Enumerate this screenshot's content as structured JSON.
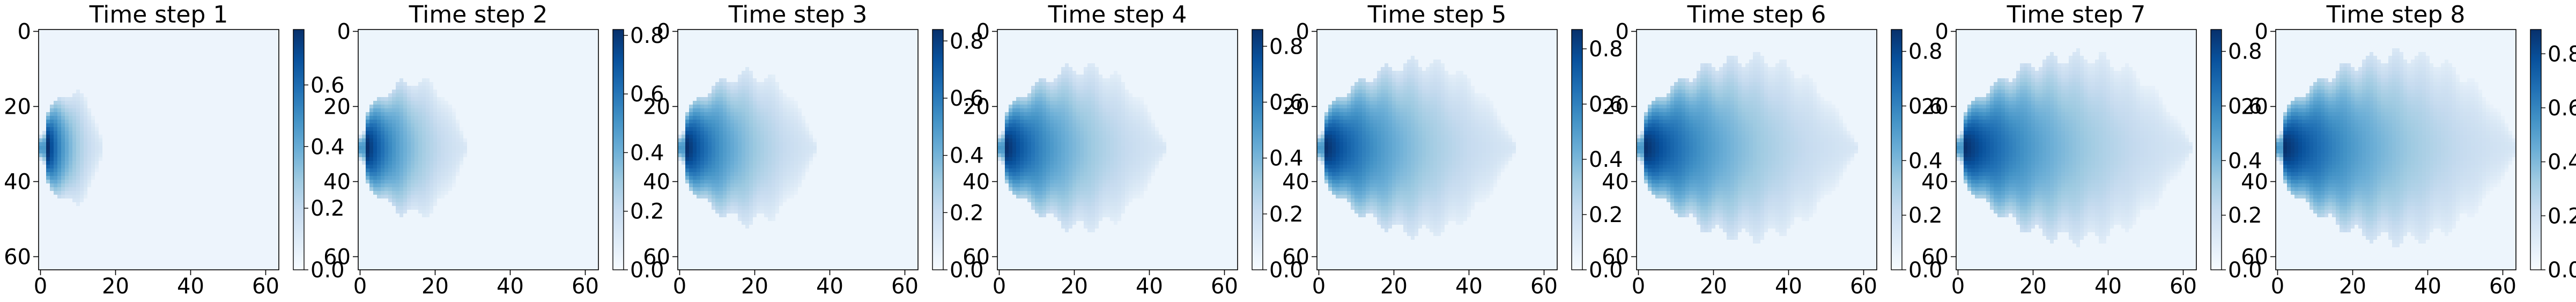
{
  "colormap": [
    "#f7fbff",
    "#deebf7",
    "#c6dbef",
    "#9ecae1",
    "#6baed6",
    "#4292c6",
    "#2171b5",
    "#08519c",
    "#08306b"
  ],
  "chart_data": {
    "type": "heatmap",
    "grid_size": 64,
    "xlim": [
      0,
      63
    ],
    "ylim": [
      63,
      0
    ],
    "x_ticks": [
      "0",
      "20",
      "40",
      "60"
    ],
    "y_ticks": [
      "0",
      "20",
      "40",
      "60"
    ],
    "source_row": 31,
    "source_col": 2,
    "panels": [
      {
        "title": "Time step 1",
        "extent": 14,
        "peak": 0.78,
        "vmax": 0.78,
        "colorbar_ticks": [
          "0.0",
          "0.2",
          "0.4",
          "0.6"
        ]
      },
      {
        "title": "Time step 2",
        "extent": 26,
        "peak": 0.82,
        "vmax": 0.82,
        "colorbar_ticks": [
          "0.0",
          "0.2",
          "0.4",
          "0.6",
          "0.8"
        ]
      },
      {
        "title": "Time step 3",
        "extent": 34,
        "peak": 0.84,
        "vmax": 0.84,
        "colorbar_ticks": [
          "0.0",
          "0.2",
          "0.4",
          "0.6",
          "0.8"
        ]
      },
      {
        "title": "Time step 4",
        "extent": 42,
        "peak": 0.86,
        "vmax": 0.86,
        "colorbar_ticks": [
          "0.0",
          "0.2",
          "0.4",
          "0.6",
          "0.8"
        ]
      },
      {
        "title": "Time step 5",
        "extent": 50,
        "peak": 0.87,
        "vmax": 0.87,
        "colorbar_ticks": [
          "0.0",
          "0.2",
          "0.4",
          "0.6",
          "0.8"
        ]
      },
      {
        "title": "Time step 6",
        "extent": 56,
        "peak": 0.88,
        "vmax": 0.88,
        "colorbar_ticks": [
          "0.0",
          "0.2",
          "0.4",
          "0.6",
          "0.8"
        ]
      },
      {
        "title": "Time step 7",
        "extent": 60,
        "peak": 0.88,
        "vmax": 0.88,
        "colorbar_ticks": [
          "0.0",
          "0.2",
          "0.4",
          "0.6",
          "0.8"
        ]
      },
      {
        "title": "Time step 8",
        "extent": 62,
        "peak": 0.89,
        "vmax": 0.89,
        "colorbar_ticks": [
          "0.0",
          "0.2",
          "0.4",
          "0.6",
          "0.8"
        ]
      }
    ]
  }
}
